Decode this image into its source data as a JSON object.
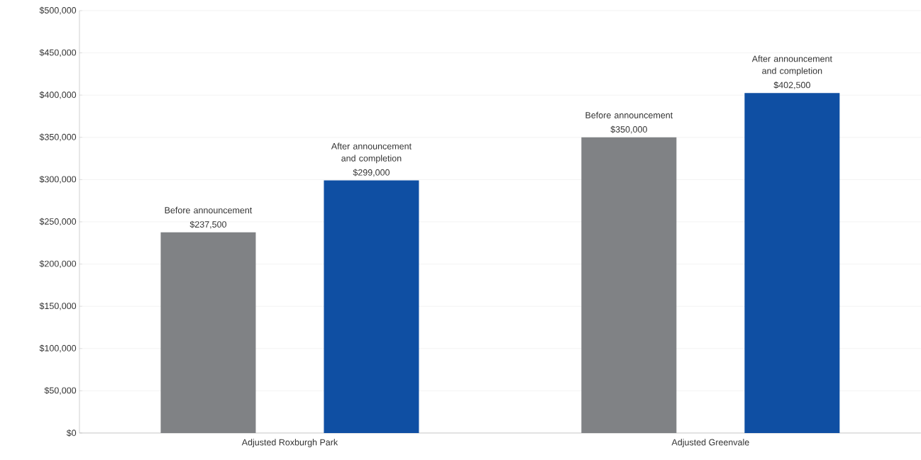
{
  "chart_data": {
    "type": "bar",
    "categories": [
      "Adjusted Roxburgh Park",
      "Adjusted Greenvale"
    ],
    "series": [
      {
        "name": "Before announcement",
        "color": "#808285",
        "values": [
          237500,
          350000
        ],
        "value_labels": [
          "$237,500",
          "$350,000"
        ]
      },
      {
        "name": "After announcement and completion",
        "color": "#0f4fa3",
        "values": [
          299000,
          402500
        ],
        "value_labels": [
          "$299,000",
          "$402,500"
        ]
      }
    ],
    "ylim": [
      0,
      500000
    ],
    "yticks": [
      {
        "value": 0,
        "label": "$0"
      },
      {
        "value": 50000,
        "label": "$50,000"
      },
      {
        "value": 100000,
        "label": "$100,000"
      },
      {
        "value": 150000,
        "label": "$150,000"
      },
      {
        "value": 200000,
        "label": "$200,000"
      },
      {
        "value": 250000,
        "label": "$250,000"
      },
      {
        "value": 300000,
        "label": "$300,000"
      },
      {
        "value": 350000,
        "label": "$350,000"
      },
      {
        "value": 400000,
        "label": "$400,000"
      },
      {
        "value": 450000,
        "label": "$450,000"
      },
      {
        "value": 500000,
        "label": "$500,000"
      }
    ],
    "grid": "y"
  }
}
